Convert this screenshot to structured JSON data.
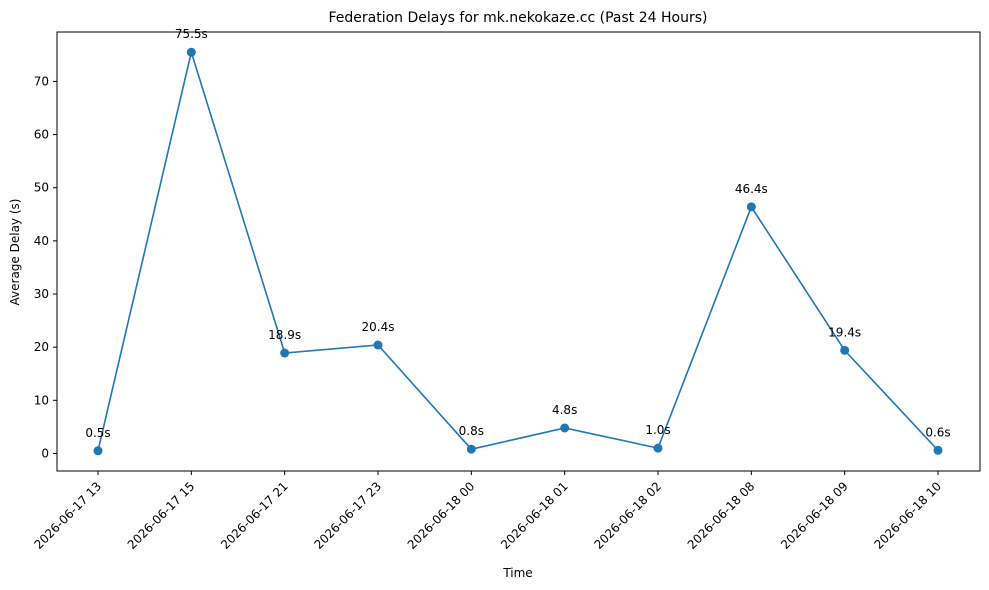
{
  "chart_data": {
    "type": "line",
    "title": "Federation Delays for mk.nekokaze.cc (Past 24 Hours)",
    "xlabel": "Time",
    "ylabel": "Average Delay (s)",
    "categories": [
      "2026-06-17 13",
      "2026-06-17 15",
      "2026-06-17 21",
      "2026-06-17 23",
      "2026-06-18 00",
      "2026-06-18 01",
      "2026-06-18 02",
      "2026-06-18 08",
      "2026-06-18 09",
      "2026-06-18 10"
    ],
    "values": [
      0.5,
      75.5,
      18.9,
      20.4,
      0.8,
      4.8,
      1.0,
      46.4,
      19.4,
      0.6
    ],
    "data_labels": [
      "0.5s",
      "75.5s",
      "18.9s",
      "20.4s",
      "0.8s",
      "4.8s",
      "1.0s",
      "46.4s",
      "19.4s",
      "0.6s"
    ],
    "yticks": [
      0,
      10,
      20,
      30,
      40,
      50,
      60,
      70
    ],
    "ylim": [
      -3.3,
      79.3
    ],
    "grid": false,
    "colors": {
      "line": "#1f77b4",
      "marker": "#1f77b4",
      "axis": "#000000"
    }
  }
}
